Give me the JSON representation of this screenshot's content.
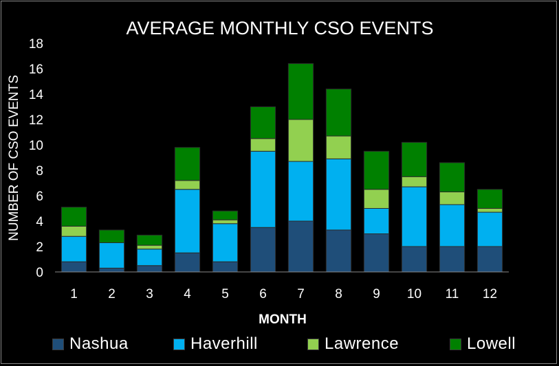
{
  "chart_data": {
    "type": "bar",
    "stacked": true,
    "title": "AVERAGE MONTHLY CSO EVENTS",
    "xlabel": "MONTH",
    "ylabel": "NUMBER OF CSO EVENTS",
    "ylim": [
      0,
      18
    ],
    "yticks": [
      "0",
      "2",
      "4",
      "6",
      "8",
      "10",
      "12",
      "14",
      "16",
      "18"
    ],
    "categories": [
      "1",
      "2",
      "3",
      "4",
      "5",
      "6",
      "7",
      "8",
      "9",
      "10",
      "11",
      "12"
    ],
    "grid": false,
    "legend_position": "bottom",
    "series": [
      {
        "name": "Nashua",
        "color": "#1f4e79",
        "values": [
          0.8,
          0.3,
          0.5,
          1.5,
          0.8,
          3.5,
          4.0,
          3.3,
          3.0,
          2.0,
          2.0,
          2.0
        ]
      },
      {
        "name": "Haverhill",
        "color": "#00b0f0",
        "values": [
          2.0,
          2.0,
          1.3,
          5.0,
          3.0,
          6.0,
          4.7,
          5.6,
          2.0,
          4.7,
          3.3,
          2.7
        ]
      },
      {
        "name": "Lawrence",
        "color": "#92d050",
        "values": [
          0.8,
          0.0,
          0.3,
          0.7,
          0.3,
          1.0,
          3.3,
          1.8,
          1.5,
          0.8,
          1.0,
          0.3
        ]
      },
      {
        "name": "Lowell",
        "color": "#008000",
        "values": [
          1.5,
          1.0,
          0.8,
          2.6,
          0.7,
          2.5,
          4.4,
          3.7,
          3.0,
          2.7,
          2.3,
          1.5
        ]
      }
    ]
  }
}
